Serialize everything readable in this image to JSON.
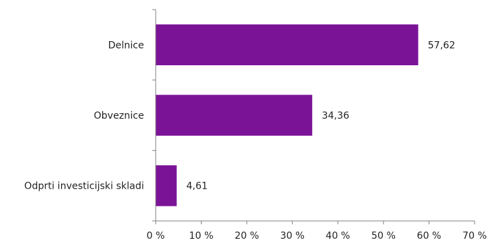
{
  "chart_data": {
    "type": "bar",
    "orientation": "horizontal",
    "categories": [
      "Delnice",
      "Obveznice",
      "Odprti investicijski skladi"
    ],
    "values": [
      57.62,
      34.36,
      4.61
    ],
    "value_labels": [
      "57,62",
      "34,36",
      "4,61"
    ],
    "xlim": [
      0,
      70
    ],
    "x_ticks": [
      0,
      10,
      20,
      30,
      40,
      50,
      60,
      70
    ],
    "x_tick_labels": [
      "0 %",
      "10 %",
      "20 %",
      "30 %",
      "40 %",
      "50 %",
      "60 %",
      "70 %"
    ],
    "title": "",
    "xlabel": "",
    "ylabel": "",
    "grid": false,
    "legend": "none",
    "bar_color": "#7b1397",
    "axis_color": "#808080"
  }
}
